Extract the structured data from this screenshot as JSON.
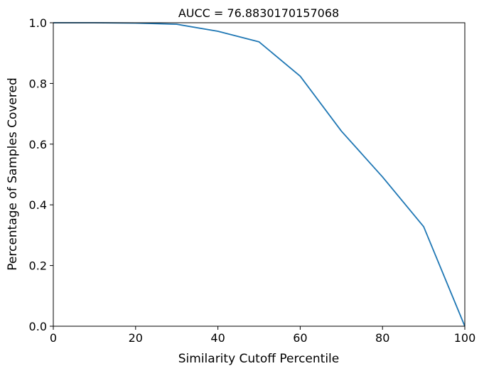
{
  "chart_data": {
    "type": "line",
    "title": "AUCC = 76.8830170157068",
    "xlabel": "Similarity Cutoff Percentile",
    "ylabel": "Percentage of Samples Covered",
    "xlim": [
      0,
      100
    ],
    "ylim": [
      0.0,
      1.0
    ],
    "xticks": [
      0,
      20,
      40,
      60,
      80,
      100
    ],
    "xtick_labels": [
      "0",
      "20",
      "40",
      "60",
      "80",
      "100"
    ],
    "yticks": [
      0.0,
      0.2,
      0.4,
      0.6,
      0.8,
      1.0
    ],
    "ytick_labels": [
      "0.0",
      "0.2",
      "0.4",
      "0.6",
      "0.8",
      "1.0"
    ],
    "grid": false,
    "series": [
      {
        "color": "#1f77b4",
        "x": [
          0,
          10,
          20,
          30,
          40,
          50,
          60,
          70,
          80,
          90,
          100
        ],
        "y": [
          1.0,
          1.0,
          0.999,
          0.995,
          0.972,
          0.937,
          0.824,
          0.643,
          0.492,
          0.328,
          0.0
        ]
      }
    ]
  }
}
